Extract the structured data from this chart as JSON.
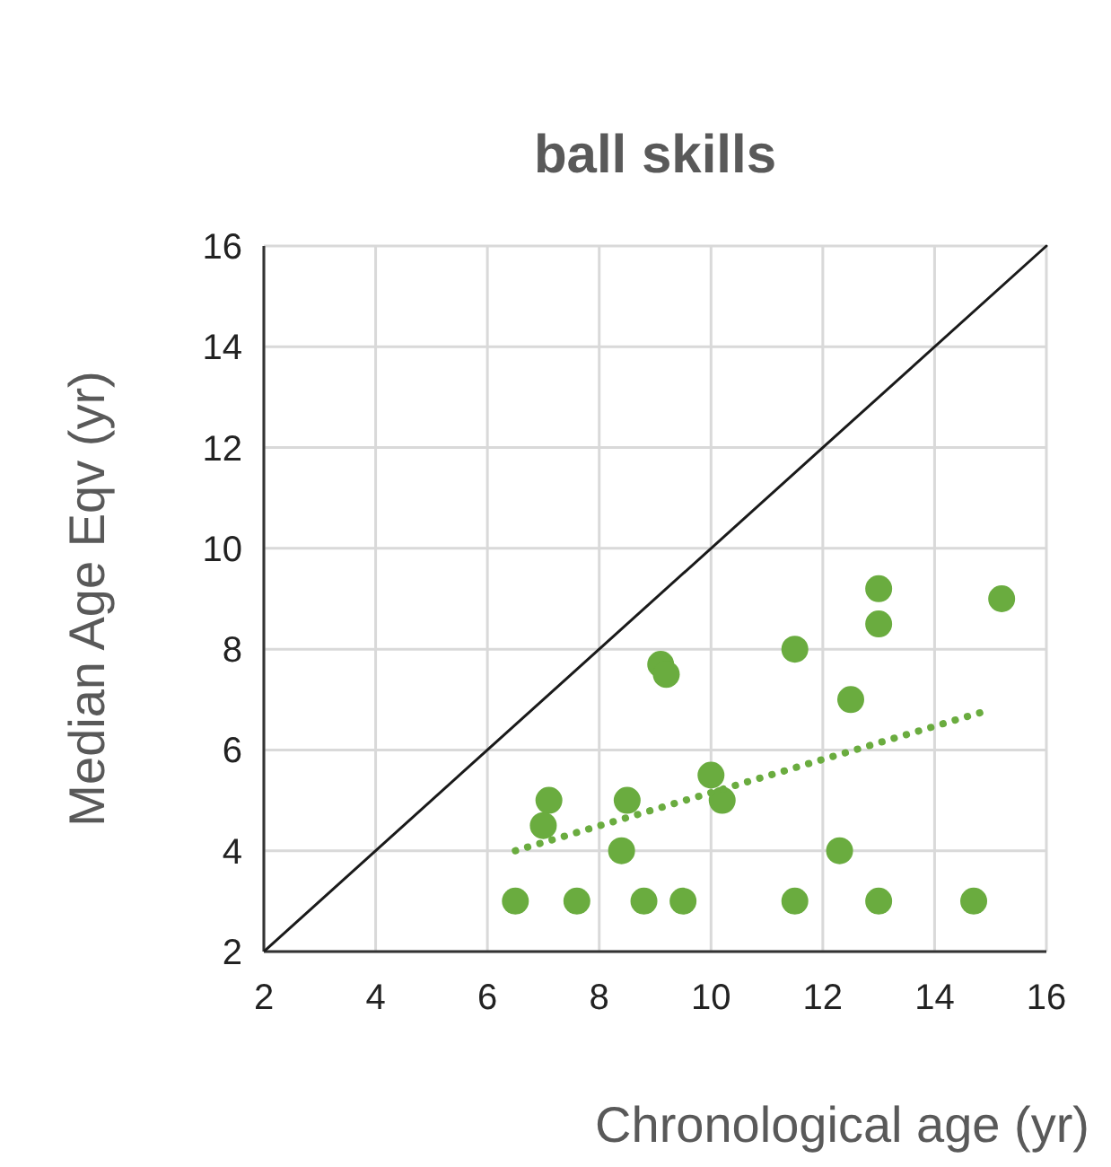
{
  "chart_data": {
    "type": "scatter",
    "title": "ball skills",
    "xlabel": "Chronological age (yr)",
    "ylabel": "Median Age Eqv (yr)",
    "xlim": [
      2,
      16
    ],
    "ylim": [
      2,
      16
    ],
    "xticks": [
      2,
      4,
      6,
      8,
      10,
      12,
      14,
      16
    ],
    "yticks": [
      2,
      4,
      6,
      8,
      10,
      12,
      14,
      16
    ],
    "grid": true,
    "marker": "circle",
    "series": [
      {
        "color": "#6aac3f",
        "x": [
          6.5,
          7.6,
          8.8,
          9.5,
          11.5,
          13,
          14.7,
          7.1,
          7,
          8.4,
          8.5,
          9.1,
          9.2,
          10,
          10.2,
          11.5,
          12.3,
          12.5,
          13,
          13,
          15.2
        ],
        "values": [
          3,
          3,
          3,
          3,
          3,
          3,
          3,
          5,
          4.5,
          4,
          5,
          7.7,
          7.5,
          5.5,
          5,
          8,
          4,
          7,
          8.5,
          9.2,
          9
        ]
      },
      {
        "type": "line",
        "color": "#6aac3f",
        "line_style": "dotted",
        "marker": "none",
        "x": [
          6.5,
          15
        ],
        "values": [
          4,
          6.8
        ]
      },
      {
        "type": "line",
        "color": "#1a1a1a",
        "line_style": "solid",
        "marker": "none",
        "x": [
          2,
          16
        ],
        "values": [
          2,
          16
        ]
      }
    ]
  }
}
